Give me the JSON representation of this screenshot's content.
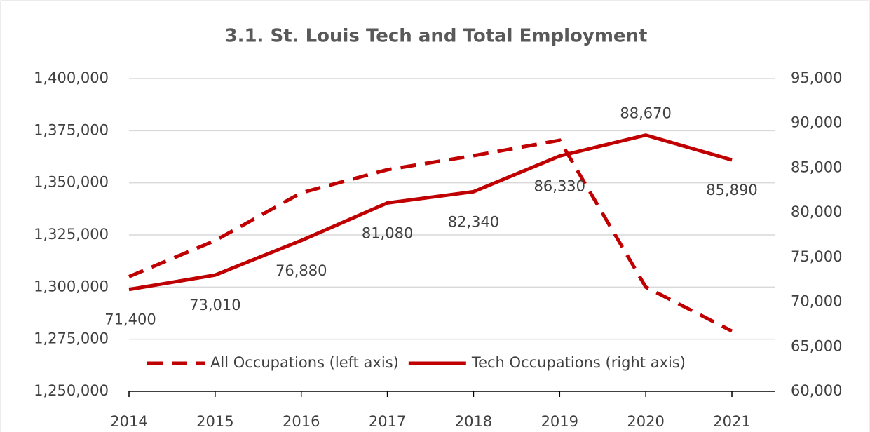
{
  "chart_data": {
    "type": "line",
    "title": "3.1. St. Louis Tech and Total Employment",
    "categories": [
      "2014",
      "2015",
      "2016",
      "2017",
      "2018",
      "2019",
      "2020",
      "2021"
    ],
    "series": [
      {
        "name": "All Occupations (left axis)",
        "color": "#c00000",
        "linestyle": "dashed",
        "axis": "y",
        "values": [
          1305000,
          1322300,
          1345200,
          1356300,
          1363000,
          1370400,
          1300000,
          1278900
        ]
      },
      {
        "name": "Tech Occupations (right axis)",
        "color": "#c00000",
        "linestyle": "solid",
        "axis": "y2",
        "values": [
          71400,
          73010,
          76880,
          81080,
          82340,
          86330,
          88670,
          85890
        ],
        "value_labels": [
          "71,400",
          "73,010",
          "76,880",
          "81,080",
          "82,340",
          "86,330",
          "88,670",
          "85,890"
        ]
      }
    ],
    "ylim": [
      1250000,
      1400000
    ],
    "yticks": [
      {
        "value": 1250000,
        "label": "1,250,000"
      },
      {
        "value": 1275000,
        "label": "1,275,000"
      },
      {
        "value": 1300000,
        "label": "1,300,000"
      },
      {
        "value": 1325000,
        "label": "1,325,000"
      },
      {
        "value": 1350000,
        "label": "1,350,000"
      },
      {
        "value": 1375000,
        "label": "1,375,000"
      },
      {
        "value": 1400000,
        "label": "1,400,000"
      }
    ],
    "y2lim": [
      60000,
      95000
    ],
    "y2ticks": [
      {
        "value": 60000,
        "label": "60,000"
      },
      {
        "value": 65000,
        "label": "65,000"
      },
      {
        "value": 70000,
        "label": "70,000"
      },
      {
        "value": 75000,
        "label": "75,000"
      },
      {
        "value": 80000,
        "label": "80,000"
      },
      {
        "value": 85000,
        "label": "85,000"
      },
      {
        "value": 90000,
        "label": "90,000"
      },
      {
        "value": 95000,
        "label": "95,000"
      }
    ],
    "grid": true,
    "legend": "bottom"
  }
}
